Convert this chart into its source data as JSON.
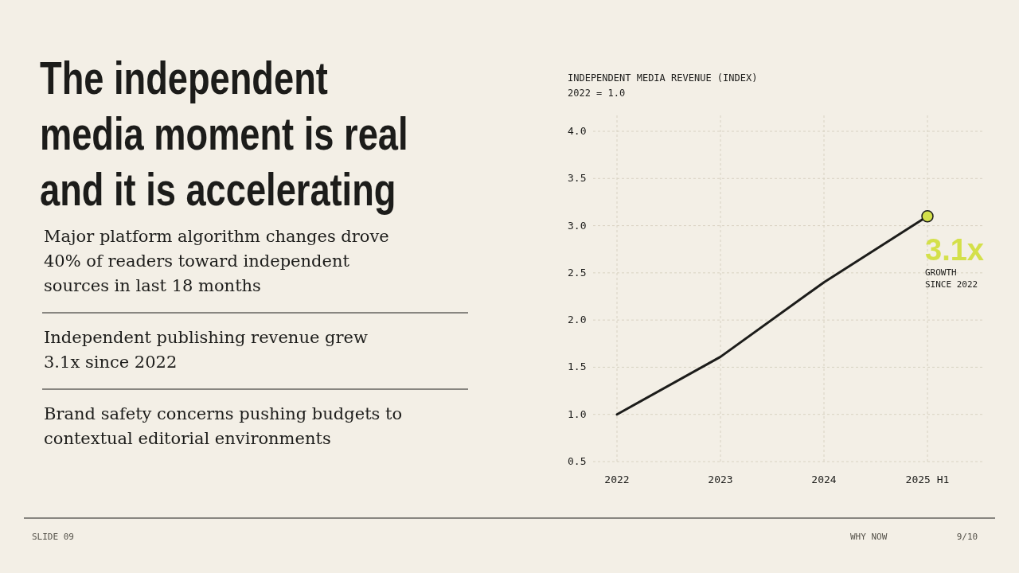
{
  "chart_data": {
    "type": "line",
    "title": "INDEPENDENT MEDIA REVENUE (INDEX)",
    "subtitle": "2022 = 1.0",
    "categories": [
      "2022",
      "2023",
      "2024",
      "2025 H1"
    ],
    "series": [
      {
        "color": "#1c1c1a",
        "values": [
          1.0,
          1.61,
          2.4,
          3.1
        ]
      },
      {
        "type": "scatter",
        "color": "#d4e04a",
        "x": [
          "2025 H1"
        ],
        "values": [
          3.1
        ]
      }
    ],
    "ylim": [
      0.5,
      4.0
    ],
    "yticks": [
      0.5,
      {
        "value": 1,
        "label": "1.0"
      },
      1.5,
      {
        "value": 2,
        "label": "2.0"
      },
      2.5,
      {
        "value": 3,
        "label": "3.0"
      },
      3.5,
      {
        "value": 4,
        "label": "4.0"
      }
    ],
    "grid": true,
    "line_style": "solid",
    "annotations": [
      {
        "text": "3.1x",
        "x": "2025 H1",
        "y": 3.1
      },
      "GROWTH SINCE 2022",
      "The independent media moment is real and it is accelerating",
      "Major platform algorithm changes drove 40% of readers toward independent sources in last 18 months",
      "Independent publishing revenue grew 3.1x since 2022",
      "Brand safety concerns pushing budgets to contextual editorial environments",
      "SLIDE 09",
      "WHY NOW",
      "9/10"
    ]
  }
}
